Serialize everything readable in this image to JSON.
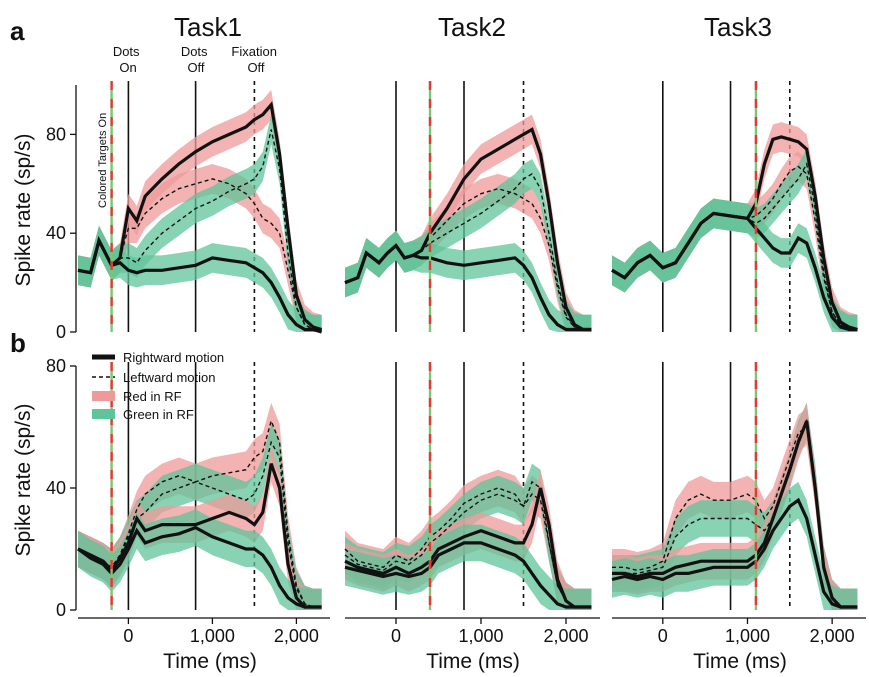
{
  "figure": {
    "panel_labels": [
      "a",
      "b"
    ],
    "tasks": [
      "Task1",
      "Task2",
      "Task3"
    ],
    "ylabel": "Spike rate (sp/s)",
    "xlabel": "Time (ms)",
    "event_labels": {
      "dots_on": "Dots\nOn",
      "dots_off": "Dots\nOff",
      "fixation_off": "Fixation\nOff",
      "targets_on": "Colored Targets On"
    },
    "legend": {
      "rightward": "Rightward motion",
      "leftward": "Leftward motion",
      "red": "Red in RF",
      "green": "Green in RF"
    },
    "colors": {
      "red_band": "#ef9a9a",
      "green_band": "#5fc49a",
      "line": "#111111",
      "marker_red": "#e53935",
      "marker_green": "#7cc576"
    }
  },
  "chart_data": [
    {
      "type": "line",
      "row": "a",
      "title": "Task1",
      "xlabel": "",
      "ylabel": "Spike rate (sp/s)",
      "xlim": [
        -600,
        2400
      ],
      "ylim": [
        0,
        100
      ],
      "yticks": [
        0,
        40,
        80
      ],
      "xticks": [],
      "events": {
        "targets_on": -200,
        "dots_on": 0,
        "dots_off": 800,
        "fixation_off": 1500
      },
      "x": [
        -600,
        -450,
        -350,
        -200,
        -100,
        0,
        100,
        200,
        400,
        600,
        800,
        1000,
        1200,
        1400,
        1500,
        1600,
        1700,
        1800,
        1900,
        2000,
        2100,
        2200,
        2300
      ],
      "series": [
        {
          "name": "Rightward motion, Red in RF",
          "style": "solid",
          "band": "red",
          "values": [
            25,
            24,
            37,
            27,
            30,
            50,
            45,
            55,
            62,
            68,
            73,
            77,
            80,
            83,
            86,
            88,
            92,
            72,
            42,
            15,
            5,
            2,
            1
          ]
        },
        {
          "name": "Leftward motion, Red in RF",
          "style": "dashed",
          "band": "red",
          "values": [
            25,
            24,
            37,
            27,
            30,
            42,
            42,
            48,
            54,
            58,
            60,
            62,
            60,
            56,
            52,
            46,
            44,
            40,
            25,
            10,
            3,
            1,
            1
          ]
        },
        {
          "name": "Leftward motion, Green in RF",
          "style": "dashed",
          "band": "green",
          "values": [
            25,
            24,
            37,
            27,
            30,
            30,
            28,
            33,
            40,
            45,
            50,
            53,
            57,
            60,
            62,
            67,
            82,
            66,
            32,
            10,
            3,
            1,
            1
          ]
        },
        {
          "name": "Rightward motion, Green in RF",
          "style": "solid",
          "band": "green",
          "values": [
            25,
            24,
            37,
            27,
            28,
            25,
            24,
            25,
            25,
            26,
            27,
            30,
            29,
            28,
            26,
            24,
            20,
            14,
            7,
            3,
            1,
            1,
            0
          ]
        }
      ]
    },
    {
      "type": "line",
      "row": "a",
      "title": "Task2",
      "xlim": [
        -600,
        2400
      ],
      "ylim": [
        0,
        100
      ],
      "xticks": [],
      "events": {
        "dots_on": 0,
        "targets_on": 400,
        "dots_off": 800,
        "fixation_off": 1500
      },
      "x": [
        -600,
        -450,
        -350,
        -200,
        -100,
        0,
        100,
        200,
        300,
        400,
        600,
        800,
        1000,
        1200,
        1400,
        1500,
        1600,
        1700,
        1800,
        1900,
        2000,
        2100,
        2200,
        2300
      ],
      "series": [
        {
          "name": "Rightward motion, Red in RF",
          "style": "solid",
          "band": "red",
          "values": [
            20,
            22,
            32,
            28,
            32,
            35,
            30,
            31,
            33,
            40,
            50,
            62,
            70,
            74,
            78,
            80,
            82,
            72,
            52,
            28,
            10,
            3,
            1,
            1
          ]
        },
        {
          "name": "Leftward motion, Red in RF",
          "style": "dashed",
          "band": "red",
          "values": [
            20,
            22,
            32,
            28,
            32,
            35,
            30,
            31,
            33,
            38,
            45,
            52,
            56,
            58,
            56,
            54,
            52,
            46,
            35,
            18,
            6,
            2,
            1,
            1
          ]
        },
        {
          "name": "Leftward motion, Green in RF",
          "style": "dashed",
          "band": "green",
          "values": [
            20,
            22,
            32,
            28,
            32,
            35,
            30,
            31,
            33,
            36,
            40,
            44,
            48,
            53,
            58,
            62,
            64,
            58,
            40,
            20,
            7,
            2,
            1,
            1
          ]
        },
        {
          "name": "Rightward motion, Green in RF",
          "style": "solid",
          "band": "green",
          "values": [
            20,
            22,
            32,
            28,
            32,
            35,
            30,
            31,
            30,
            30,
            28,
            27,
            28,
            29,
            30,
            27,
            22,
            14,
            7,
            3,
            1,
            1,
            1,
            1
          ]
        }
      ]
    },
    {
      "type": "line",
      "row": "a",
      "title": "Task3",
      "xlim": [
        -600,
        2400
      ],
      "ylim": [
        0,
        100
      ],
      "xticks": [],
      "events": {
        "dots_on": 0,
        "dots_off": 800,
        "targets_on": 1100,
        "fixation_off": 1500
      },
      "x": [
        -600,
        -450,
        -300,
        -150,
        0,
        150,
        300,
        450,
        600,
        800,
        1000,
        1100,
        1200,
        1300,
        1400,
        1500,
        1600,
        1700,
        1800,
        1900,
        2000,
        2100,
        2200,
        2300
      ],
      "series": [
        {
          "name": "Rightward motion, Red in RF",
          "style": "solid",
          "band": "red",
          "values": [
            25,
            22,
            28,
            31,
            26,
            28,
            36,
            44,
            48,
            47,
            46,
            52,
            68,
            78,
            79,
            78,
            77,
            74,
            55,
            30,
            12,
            4,
            2,
            1
          ]
        },
        {
          "name": "Leftward motion, Red in RF",
          "style": "dashed",
          "band": "red",
          "values": [
            25,
            22,
            28,
            31,
            26,
            28,
            36,
            44,
            48,
            47,
            46,
            47,
            50,
            54,
            60,
            65,
            67,
            64,
            45,
            22,
            8,
            3,
            1,
            1
          ]
        },
        {
          "name": "Leftward motion, Green in RF",
          "style": "dashed",
          "band": "green",
          "values": [
            25,
            22,
            28,
            31,
            26,
            28,
            36,
            44,
            48,
            47,
            46,
            44,
            46,
            50,
            54,
            58,
            62,
            68,
            50,
            24,
            8,
            3,
            1,
            1
          ]
        },
        {
          "name": "Rightward motion, Green in RF",
          "style": "solid",
          "band": "green",
          "values": [
            25,
            22,
            28,
            31,
            26,
            28,
            36,
            44,
            48,
            47,
            46,
            42,
            38,
            34,
            32,
            32,
            38,
            36,
            26,
            14,
            6,
            2,
            1,
            1
          ]
        }
      ]
    },
    {
      "type": "line",
      "row": "b",
      "title": "",
      "xlabel": "Time (ms)",
      "ylabel": "Spike rate (sp/s)",
      "xlim": [
        -600,
        2400
      ],
      "ylim": [
        0,
        80
      ],
      "yticks": [
        0,
        40,
        80
      ],
      "xticks": [
        0,
        1000,
        2000
      ],
      "xticklabels": [
        "0",
        "1,000",
        "2,000"
      ],
      "events": {
        "targets_on": -200,
        "dots_on": 0,
        "dots_off": 800,
        "fixation_off": 1500
      },
      "x": [
        -600,
        -450,
        -300,
        -200,
        -100,
        0,
        100,
        200,
        400,
        600,
        800,
        1000,
        1200,
        1400,
        1500,
        1600,
        1700,
        1800,
        1900,
        2000,
        2100,
        2200,
        2300
      ],
      "series": [
        {
          "name": "Leftward motion, Red in RF",
          "style": "dashed",
          "band": "red",
          "values": [
            20,
            18,
            16,
            14,
            18,
            25,
            33,
            38,
            42,
            44,
            42,
            44,
            45,
            46,
            50,
            52,
            62,
            55,
            25,
            8,
            2,
            1,
            1
          ]
        },
        {
          "name": "Leftward motion, Green in RF",
          "style": "dashed",
          "band": "green",
          "values": [
            20,
            18,
            16,
            14,
            18,
            24,
            30,
            32,
            38,
            40,
            42,
            40,
            38,
            36,
            38,
            44,
            55,
            50,
            22,
            7,
            2,
            1,
            1
          ]
        },
        {
          "name": "Rightward motion, Red in RF",
          "style": "solid",
          "band": "red",
          "values": [
            20,
            18,
            16,
            13,
            17,
            22,
            30,
            26,
            28,
            28,
            28,
            30,
            32,
            30,
            28,
            32,
            48,
            40,
            15,
            4,
            1,
            1,
            1
          ]
        },
        {
          "name": "Rightward motion, Green in RF",
          "style": "solid",
          "band": "green",
          "values": [
            20,
            17,
            15,
            12,
            15,
            20,
            26,
            22,
            24,
            25,
            27,
            24,
            22,
            20,
            20,
            18,
            14,
            8,
            4,
            2,
            1,
            1,
            1
          ]
        }
      ]
    },
    {
      "type": "line",
      "row": "b",
      "title": "",
      "xlabel": "Time (ms)",
      "xlim": [
        -600,
        2400
      ],
      "ylim": [
        0,
        80
      ],
      "xticks": [
        0,
        1000,
        2000
      ],
      "xticklabels": [
        "0",
        "1,000",
        "2,000"
      ],
      "events": {
        "dots_on": 0,
        "targets_on": 400,
        "dots_off": 800,
        "fixation_off": 1500
      },
      "x": [
        -600,
        -450,
        -300,
        -150,
        0,
        150,
        300,
        400,
        500,
        650,
        800,
        1000,
        1200,
        1400,
        1500,
        1600,
        1700,
        1800,
        1900,
        2000,
        2100,
        2200,
        2300
      ],
      "series": [
        {
          "name": "Leftward motion, Red in RF",
          "style": "dashed",
          "band": "red",
          "values": [
            20,
            16,
            15,
            14,
            18,
            16,
            20,
            24,
            26,
            30,
            35,
            38,
            40,
            38,
            34,
            38,
            36,
            22,
            8,
            3,
            1,
            1,
            1
          ]
        },
        {
          "name": "Leftward motion, Green in RF",
          "style": "dashed",
          "band": "green",
          "values": [
            18,
            15,
            14,
            13,
            16,
            15,
            18,
            22,
            24,
            28,
            32,
            36,
            38,
            36,
            34,
            42,
            40,
            22,
            8,
            3,
            1,
            1,
            1
          ]
        },
        {
          "name": "Rightward motion, Red in RF",
          "style": "solid",
          "band": "red",
          "values": [
            16,
            14,
            13,
            12,
            14,
            12,
            14,
            16,
            20,
            22,
            24,
            26,
            24,
            22,
            22,
            28,
            40,
            28,
            10,
            3,
            1,
            1,
            1
          ]
        },
        {
          "name": "Rightward motion, Green in RF",
          "style": "solid",
          "band": "green",
          "values": [
            14,
            13,
            12,
            11,
            12,
            11,
            12,
            14,
            18,
            20,
            22,
            22,
            20,
            18,
            16,
            12,
            8,
            5,
            2,
            1,
            1,
            1,
            1
          ]
        }
      ]
    },
    {
      "type": "line",
      "row": "b",
      "title": "",
      "xlabel": "Time (ms)",
      "xlim": [
        -600,
        2400
      ],
      "ylim": [
        0,
        80
      ],
      "xticks": [
        0,
        1000,
        2000
      ],
      "xticklabels": [
        "0",
        "1,000",
        "2,000"
      ],
      "events": {
        "dots_on": 0,
        "dots_off": 800,
        "targets_on": 1100,
        "fixation_off": 1500
      },
      "x": [
        -600,
        -450,
        -300,
        -150,
        0,
        150,
        300,
        450,
        600,
        800,
        1000,
        1100,
        1200,
        1300,
        1400,
        1500,
        1600,
        1700,
        1800,
        1900,
        2000,
        2100,
        2200,
        2300
      ],
      "series": [
        {
          "name": "Leftward motion, Red in RF",
          "style": "dashed",
          "band": "red",
          "values": [
            14,
            14,
            13,
            14,
            16,
            30,
            36,
            38,
            36,
            36,
            38,
            36,
            30,
            34,
            42,
            50,
            58,
            60,
            40,
            15,
            4,
            1,
            1,
            1
          ]
        },
        {
          "name": "Leftward motion, Green in RF",
          "style": "dashed",
          "band": "green",
          "values": [
            12,
            12,
            12,
            13,
            14,
            24,
            28,
            30,
            30,
            30,
            30,
            28,
            26,
            30,
            38,
            46,
            56,
            62,
            42,
            15,
            4,
            1,
            1,
            1
          ]
        },
        {
          "name": "Rightward motion, Red in RF",
          "style": "solid",
          "band": "red",
          "values": [
            12,
            12,
            11,
            12,
            12,
            14,
            15,
            16,
            16,
            16,
            16,
            18,
            22,
            30,
            38,
            46,
            55,
            62,
            40,
            14,
            4,
            1,
            1,
            1
          ]
        },
        {
          "name": "Rightward motion, Green in RF",
          "style": "solid",
          "band": "green",
          "values": [
            10,
            11,
            10,
            11,
            10,
            12,
            12,
            13,
            14,
            14,
            14,
            16,
            20,
            26,
            30,
            34,
            36,
            30,
            18,
            6,
            2,
            1,
            1,
            1
          ]
        }
      ]
    }
  ]
}
